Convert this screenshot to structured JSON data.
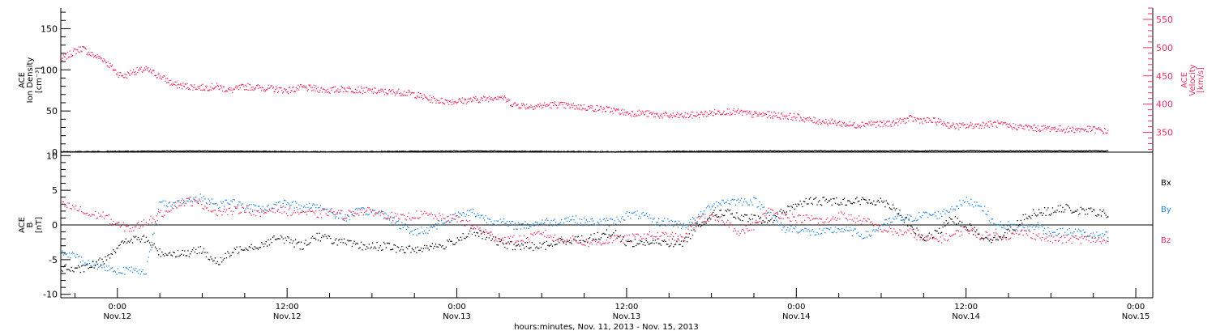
{
  "colors": {
    "black": "#000000",
    "pink": "#e8325f",
    "blue": "#1f86e0"
  },
  "x_label": "hours:minutes, Nov. 11, 2013 - Nov. 15, 2013",
  "chart_data": [
    {
      "type": "scatter",
      "panel": "top",
      "ylabel_left": [
        "ACE",
        "Ion Density",
        "[cm⁻³]"
      ],
      "ylabel_right": [
        "ACE",
        "Velocity",
        "[km/s]"
      ],
      "ylim_left": [
        0,
        175
      ],
      "left_ticks": [
        0,
        50,
        100,
        150
      ],
      "ylim_right": [
        315,
        570
      ],
      "right_ticks": [
        350,
        400,
        450,
        500,
        550
      ],
      "x_ticks": [
        {
          "hours": 0,
          "time": "0:00",
          "date": "Nov.12"
        },
        {
          "hours": 12,
          "time": "12:00",
          "date": "Nov.12"
        },
        {
          "hours": 24,
          "time": "0:00",
          "date": "Nov.13"
        },
        {
          "hours": 36,
          "time": "12:00",
          "date": "Nov.13"
        },
        {
          "hours": 48,
          "time": "0:00",
          "date": "Nov.14"
        },
        {
          "hours": 60,
          "time": "12:00",
          "date": "Nov.14"
        },
        {
          "hours": 72,
          "time": "0:00",
          "date": "Nov.15"
        }
      ],
      "xlim_hours": [
        -4.0,
        73.2
      ],
      "series": [
        {
          "axis": "right",
          "color": "pink",
          "x_hours": [
            -4,
            -3,
            -2.5,
            -2,
            -1,
            0,
            0.5,
            1,
            1.5,
            2,
            3,
            4,
            5,
            6,
            7,
            8,
            9,
            10,
            11,
            12,
            13,
            14,
            15,
            16,
            17,
            18,
            19,
            20,
            21,
            22,
            23,
            24,
            25,
            26,
            27,
            28,
            29,
            30,
            31,
            32,
            33,
            34,
            35,
            36,
            37,
            38,
            39,
            40,
            41,
            42,
            43,
            44,
            45,
            46,
            47,
            48,
            49,
            50,
            51,
            52,
            53,
            54,
            55,
            56,
            57,
            58,
            59,
            60,
            61,
            62,
            63,
            64,
            65,
            66,
            67,
            68,
            69,
            70
          ],
          "y": [
            480,
            495,
            500,
            490,
            480,
            455,
            450,
            458,
            460,
            462,
            450,
            435,
            432,
            430,
            432,
            425,
            432,
            430,
            428,
            425,
            430,
            428,
            425,
            428,
            426,
            424,
            422,
            422,
            418,
            410,
            406,
            406,
            408,
            410,
            415,
            400,
            397,
            398,
            400,
            397,
            395,
            393,
            390,
            385,
            385,
            382,
            380,
            380,
            382,
            385,
            388,
            386,
            382,
            382,
            380,
            378,
            372,
            370,
            367,
            363,
            367,
            365,
            368,
            375,
            372,
            370,
            362,
            362,
            364,
            366,
            362,
            360,
            358,
            358,
            356,
            356,
            356,
            352
          ]
        },
        {
          "axis": "left",
          "color": "black",
          "x_hours": [
            -4,
            5,
            15,
            25,
            35,
            45,
            55,
            65,
            70
          ],
          "y": [
            1,
            2,
            1,
            2,
            1,
            2,
            2,
            2,
            2
          ]
        }
      ]
    },
    {
      "type": "scatter",
      "panel": "bottom",
      "ylabel": [
        "ACE",
        "B",
        "[nT]"
      ],
      "ylim": [
        -10.5,
        10.5
      ],
      "left_ticks": [
        -10,
        -5,
        0,
        5,
        10
      ],
      "xlim_hours": [
        -4.0,
        73.2
      ],
      "legend": [
        "Bx",
        "By",
        "Bz"
      ],
      "series": [
        {
          "name": "Bx",
          "color": "black",
          "x_hours": [
            -4,
            -3,
            -2,
            -1,
            0,
            1,
            2,
            3,
            4,
            5,
            6,
            7,
            8,
            9,
            10,
            11,
            12,
            13,
            14,
            15,
            16,
            17,
            18,
            19,
            20,
            21,
            22,
            23,
            24,
            25,
            26,
            27,
            28,
            29,
            30,
            31,
            32,
            33,
            34,
            35,
            36,
            37,
            38,
            39,
            40,
            41,
            42,
            43,
            44,
            45,
            46,
            47,
            48,
            49,
            50,
            51,
            52,
            53,
            54,
            55,
            56,
            57,
            58,
            59,
            60,
            61,
            62,
            63,
            64,
            65,
            66,
            67,
            68,
            69,
            70
          ],
          "y": [
            -6,
            -6.5,
            -6,
            -5,
            -3,
            -2,
            -2,
            -4,
            -4,
            -4,
            -3.5,
            -5.5,
            -4,
            -3,
            -3,
            -2,
            -2,
            -3,
            -1.5,
            -2,
            -2.5,
            -3,
            -3,
            -3,
            -3.5,
            -3.5,
            -3,
            -3,
            -2,
            -1,
            -1.5,
            -2.5,
            -3,
            -3,
            -3,
            -2.5,
            -2,
            -2,
            -1.5,
            -1,
            -2.5,
            -2.5,
            -2.5,
            -2.5,
            -2.5,
            0,
            1.5,
            2,
            1,
            1,
            0.5,
            2,
            3,
            3.5,
            3.5,
            3.5,
            3.5,
            3.5,
            3.5,
            2.5,
            0,
            -2,
            -1,
            1,
            0,
            -1.5,
            -2,
            -1,
            1,
            2,
            2,
            2.5,
            2,
            2,
            1.5
          ]
        },
        {
          "name": "By",
          "color": "blue",
          "x_hours": [
            -4,
            -3,
            -2,
            -1,
            0,
            1,
            2,
            3,
            4,
            5,
            6,
            7,
            8,
            9,
            10,
            11,
            12,
            13,
            14,
            15,
            16,
            17,
            18,
            19,
            20,
            21,
            22,
            23,
            24,
            25,
            26,
            27,
            28,
            29,
            30,
            31,
            32,
            33,
            34,
            35,
            36,
            37,
            38,
            39,
            40,
            41,
            42,
            43,
            44,
            45,
            46,
            47,
            48,
            49,
            50,
            51,
            52,
            53,
            54,
            55,
            56,
            57,
            58,
            59,
            60,
            61,
            62,
            63,
            64,
            65,
            66,
            67,
            68,
            69,
            70
          ],
          "y": [
            -4,
            -4.5,
            -5.5,
            -6,
            -6.5,
            -6.5,
            -6.5,
            3.5,
            3,
            3.5,
            4,
            3,
            3.5,
            2.5,
            2.5,
            2.5,
            3.5,
            2.5,
            3,
            2,
            1,
            2,
            2,
            1.5,
            0,
            -1,
            -0.5,
            0.5,
            1.5,
            2,
            1,
            0.5,
            0,
            0,
            0.5,
            0.5,
            1,
            0.5,
            0.5,
            0.5,
            1.5,
            1.5,
            0.5,
            0.5,
            0,
            1,
            3,
            3.5,
            3.5,
            3.5,
            2,
            -0.5,
            -0.5,
            -1,
            -1,
            -0.5,
            -1,
            -1.5,
            0,
            1,
            1,
            1.5,
            1.5,
            2.5,
            3.5,
            3,
            0,
            0,
            -0.5,
            0,
            -1,
            -1,
            -1,
            -1.5,
            -1.5
          ]
        },
        {
          "name": "Bz",
          "color": "pink",
          "x_hours": [
            -4,
            -3,
            -2,
            -1,
            0,
            1,
            2,
            3,
            4,
            5,
            6,
            7,
            8,
            9,
            10,
            11,
            12,
            13,
            14,
            15,
            16,
            17,
            18,
            19,
            20,
            21,
            22,
            23,
            24,
            25,
            26,
            27,
            28,
            29,
            30,
            31,
            32,
            33,
            34,
            35,
            36,
            37,
            38,
            39,
            40,
            41,
            42,
            43,
            44,
            45,
            46,
            47,
            48,
            49,
            50,
            51,
            52,
            53,
            54,
            55,
            56,
            57,
            58,
            59,
            60,
            61,
            62,
            63,
            64,
            65,
            66,
            67,
            68,
            69,
            70
          ],
          "y": [
            3,
            2.5,
            1.5,
            1.5,
            0,
            -0.5,
            0.5,
            1.5,
            3,
            3.5,
            3,
            2,
            2,
            2.5,
            1.5,
            2.5,
            2,
            2,
            1.5,
            2,
            1.5,
            2,
            2,
            1.5,
            1,
            1.5,
            1.5,
            1,
            1,
            0,
            -1,
            -2,
            -2,
            -2,
            -1,
            -2,
            -2,
            -2.5,
            -2.5,
            -2,
            -2,
            -1.5,
            -1.5,
            -1.5,
            -2,
            1,
            1,
            0.5,
            -1,
            0,
            2,
            1.5,
            1,
            1,
            0.5,
            1.5,
            1,
            0.5,
            -0.5,
            -1,
            -1,
            -2,
            -2,
            -1.5,
            -0.5,
            -1.5,
            -1.5,
            -1.5,
            -1,
            -1.5,
            -2,
            -2,
            -2,
            -2,
            -2.5
          ]
        }
      ]
    }
  ]
}
